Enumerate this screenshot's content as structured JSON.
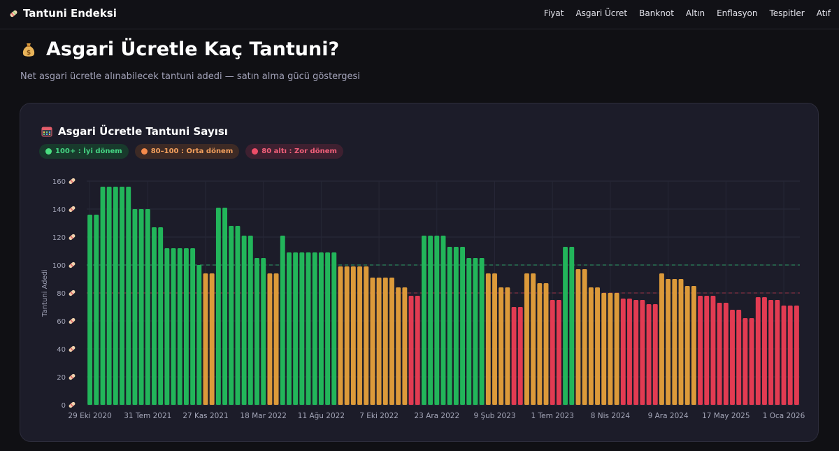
{
  "brand": {
    "title": "Tantuni Endeksi",
    "icon": "tantuni-wrap-icon"
  },
  "nav": [
    "Fiyat",
    "Asgari Ücret",
    "Banknot",
    "Altın",
    "Enflasyon",
    "Tespitler",
    "Atıf"
  ],
  "page": {
    "title": "Asgari Ücretle Kaç Tantuni?",
    "title_icon": "money-bag-icon",
    "subtitle": "Net asgari ücretle alınabilecek tantuni adedi — satın alma gücü göstergesi"
  },
  "card": {
    "title": "Asgari Ücretle Tantuni Sayısı",
    "title_icon": "calendar-icon",
    "legend": [
      {
        "label": "100+ : İyi dönem",
        "color": "#22c55e"
      },
      {
        "label": "80–100 : Orta dönem",
        "color": "#f58a4b"
      },
      {
        "label": "80 altı : Zor dönem",
        "color": "#e23b52"
      }
    ]
  },
  "chart_data": {
    "type": "bar",
    "title": "Asgari Ücretle Tantuni Sayısı",
    "ylabel": "Tantuni Adedi",
    "ylim": [
      0,
      160
    ],
    "yticks": [
      {
        "value": 0,
        "label": "0"
      },
      {
        "value": 20,
        "label": "20"
      },
      {
        "value": 40,
        "label": "40"
      },
      {
        "value": 60,
        "label": "60"
      },
      {
        "value": 80,
        "label": "80"
      },
      {
        "value": 100,
        "label": "100"
      },
      {
        "value": 120,
        "label": "120"
      },
      {
        "value": 140,
        "label": "140"
      },
      {
        "value": 160,
        "label": "160"
      }
    ],
    "xtick_labels": [
      {
        "index": 0,
        "label": "29 Eki 2020"
      },
      {
        "index": 9,
        "label": "31 Tem 2021"
      },
      {
        "index": 18,
        "label": "27 Kas 2021"
      },
      {
        "index": 27,
        "label": "18 Mar 2022"
      },
      {
        "index": 36,
        "label": "11 Ağu 2022"
      },
      {
        "index": 45,
        "label": "7 Eki 2022"
      },
      {
        "index": 54,
        "label": "23 Ara 2022"
      },
      {
        "index": 63,
        "label": "9 Şub 2023"
      },
      {
        "index": 72,
        "label": "1 Tem 2023"
      },
      {
        "index": 81,
        "label": "8 Nis 2024"
      },
      {
        "index": 90,
        "label": "9 Ara 2024"
      },
      {
        "index": 99,
        "label": "17 May 2025"
      },
      {
        "index": 108,
        "label": "1 Oca 2026"
      }
    ],
    "reference_lines": [
      {
        "value": 100,
        "color": "#2e9e67"
      },
      {
        "value": 80,
        "color": "#9a3346"
      }
    ],
    "thresholds": {
      "good": 100,
      "mid": 80
    },
    "colors": {
      "good": "#22b55a",
      "mid": "#dc9a3a",
      "bad": "#e23b52"
    },
    "values": [
      136,
      136,
      156,
      156,
      156,
      156,
      156,
      140,
      140,
      140,
      127,
      127,
      112,
      112,
      112,
      112,
      112,
      100,
      94,
      94,
      141,
      141,
      128,
      128,
      121,
      121,
      105,
      105,
      94,
      94,
      121,
      109,
      109,
      109,
      109,
      109,
      109,
      109,
      109,
      99,
      99,
      99,
      99,
      99,
      91,
      91,
      91,
      91,
      84,
      84,
      78,
      78,
      121,
      121,
      121,
      121,
      113,
      113,
      113,
      105,
      105,
      105,
      94,
      94,
      84,
      84,
      70,
      70,
      94,
      94,
      87,
      87,
      75,
      75,
      113,
      113,
      97,
      97,
      84,
      84,
      80,
      80,
      80,
      76,
      76,
      75,
      75,
      72,
      72,
      94,
      90,
      90,
      90,
      85,
      85,
      78,
      78,
      78,
      73,
      73,
      68,
      68,
      62,
      62,
      77,
      77,
      75,
      75,
      71,
      71,
      71
    ]
  }
}
